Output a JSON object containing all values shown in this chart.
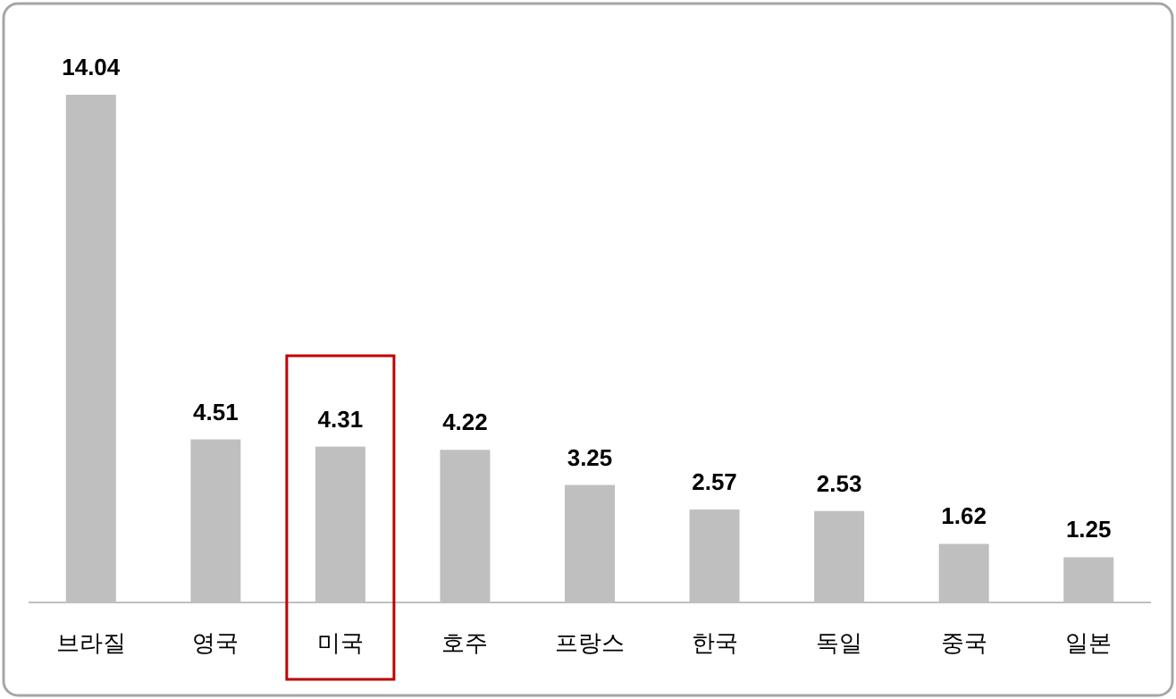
{
  "chart_data": {
    "type": "bar",
    "categories": [
      "브라질",
      "영국",
      "미국",
      "호주",
      "프랑스",
      "한국",
      "독일",
      "중국",
      "일본"
    ],
    "values": [
      14.04,
      4.51,
      4.31,
      4.22,
      3.25,
      2.57,
      2.53,
      1.62,
      1.25
    ],
    "color": "#bfbfbf",
    "data_labels": true
  }
}
